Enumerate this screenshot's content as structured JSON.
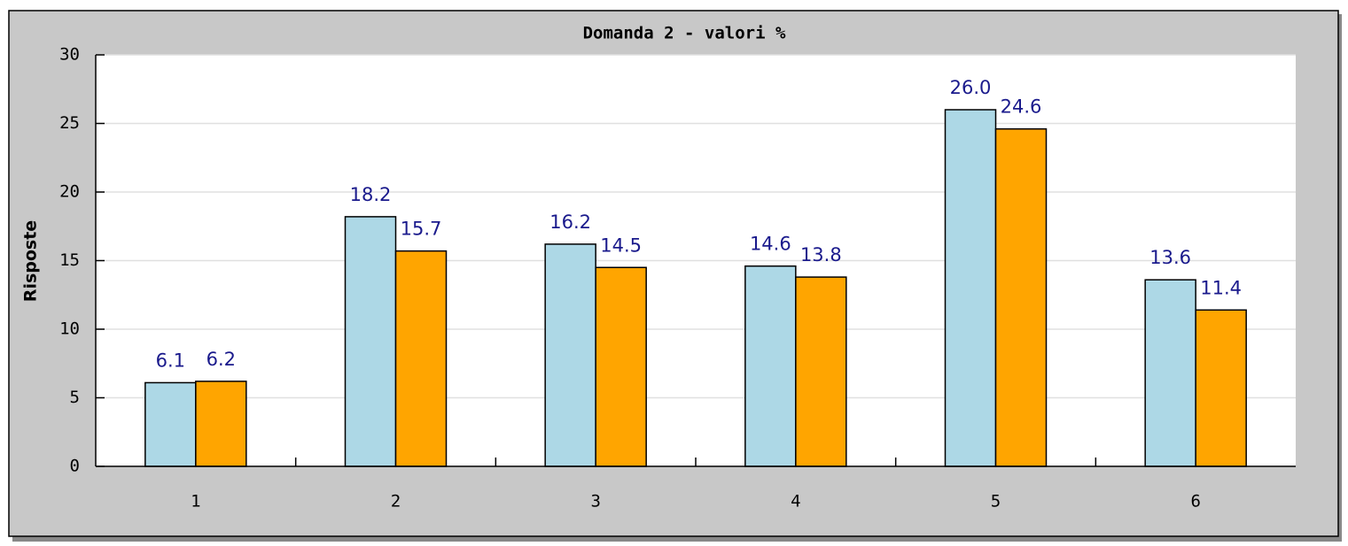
{
  "chart_data": {
    "type": "bar",
    "title": "Domanda 2 - valori %",
    "y_label": "Risposte",
    "categories": [
      "1",
      "2",
      "3",
      "4",
      "5",
      "6"
    ],
    "series": [
      {
        "color": "#add8e6",
        "values": [
          6.1,
          18.2,
          16.2,
          14.6,
          26.0,
          13.6
        ],
        "value_labels": [
          "6.1",
          "18.2",
          "16.2",
          "14.6",
          "26.0",
          "13.6"
        ]
      },
      {
        "color": "#ffa500",
        "values": [
          6.2,
          15.7,
          14.5,
          13.8,
          24.6,
          11.4
        ],
        "value_labels": [
          "6.2",
          "15.7",
          "14.5",
          "13.8",
          "24.6",
          "11.4"
        ]
      }
    ],
    "ylim": [
      0,
      30
    ],
    "yticks": [
      0,
      5,
      10,
      15,
      20,
      25,
      30
    ],
    "grid": true
  }
}
